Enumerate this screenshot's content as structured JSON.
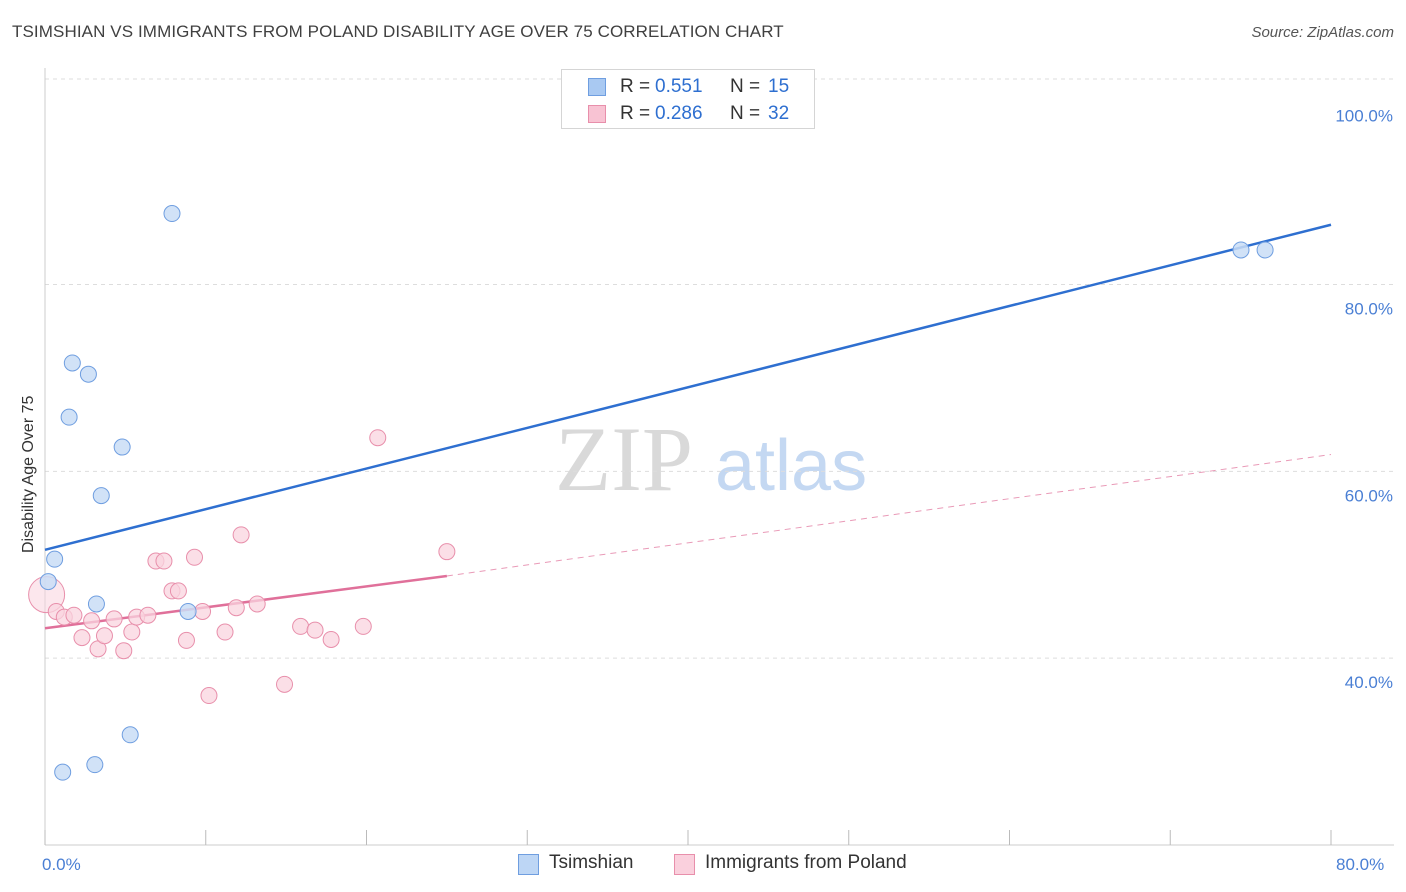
{
  "title": "TSIMSHIAN VS IMMIGRANTS FROM POLAND DISABILITY AGE OVER 75 CORRELATION CHART",
  "source": "Source: ZipAtlas.com",
  "watermark": {
    "zip": "ZIP",
    "atlas": "atlas"
  },
  "legend": {
    "r_label": "R =",
    "n_label": "N =",
    "rows": [
      {
        "r": "0.551",
        "n": "15",
        "color": "#a9c9f2",
        "border": "#6f9ee0"
      },
      {
        "r": "0.286",
        "n": "32",
        "color": "#f8c3d3",
        "border": "#e88fab"
      }
    ]
  },
  "bottom_legend": [
    {
      "label": "Tsimshian",
      "color": "#bdd6f5",
      "border": "#6f9ee0"
    },
    {
      "label": "Immigrants from Poland",
      "color": "#fad0dd",
      "border": "#e88fab"
    }
  ],
  "colors": {
    "blue_line": "#2e6fd0",
    "pink_line": "#e0709a",
    "blue_point_fill": "#c9ddf6",
    "blue_point_stroke": "#6f9ee0",
    "pink_point_fill": "#fad4df",
    "pink_point_stroke": "#e88fab",
    "grid": "#dddddd",
    "axis_label": "#4a7fd4"
  },
  "chart_data": {
    "type": "scatter",
    "title": "TSIMSHIAN VS IMMIGRANTS FROM POLAND DISABILITY AGE OVER 75 CORRELATION CHART",
    "xlabel": "",
    "ylabel": "Disability Age Over 75",
    "xlim": [
      0,
      80
    ],
    "ylim": [
      20,
      102
    ],
    "x_tick_labels": [
      "0.0%",
      "80.0%"
    ],
    "y_ticks": [
      {
        "value": 100,
        "label": "100.0%"
      },
      {
        "value": 80,
        "label": "80.0%"
      },
      {
        "value": 60,
        "label": "60.0%"
      },
      {
        "value": 40,
        "label": "40.0%"
      }
    ],
    "series": [
      {
        "name": "Tsimshian",
        "r": 0.551,
        "n": 15,
        "points": [
          {
            "x": 0.2,
            "y": 48.2
          },
          {
            "x": 0.6,
            "y": 50.6
          },
          {
            "x": 1.1,
            "y": 27.8
          },
          {
            "x": 1.5,
            "y": 65.8
          },
          {
            "x": 1.7,
            "y": 71.6
          },
          {
            "x": 2.7,
            "y": 70.4
          },
          {
            "x": 3.1,
            "y": 28.6
          },
          {
            "x": 3.2,
            "y": 45.8
          },
          {
            "x": 3.5,
            "y": 57.4
          },
          {
            "x": 4.8,
            "y": 62.6
          },
          {
            "x": 5.3,
            "y": 31.8
          },
          {
            "x": 7.9,
            "y": 87.6
          },
          {
            "x": 8.9,
            "y": 45.0
          },
          {
            "x": 74.4,
            "y": 83.7
          },
          {
            "x": 75.9,
            "y": 83.7
          }
        ],
        "trend": {
          "x1": 0,
          "y1": 51.6,
          "x2": 80,
          "y2": 86.4
        }
      },
      {
        "name": "Immigrants from Poland",
        "r": 0.286,
        "n": 32,
        "points": [
          {
            "x": 0.1,
            "y": 46.8
          },
          {
            "x": 0.7,
            "y": 45.0
          },
          {
            "x": 1.2,
            "y": 44.4
          },
          {
            "x": 1.8,
            "y": 44.6
          },
          {
            "x": 2.3,
            "y": 42.2
          },
          {
            "x": 2.9,
            "y": 44.0
          },
          {
            "x": 3.3,
            "y": 41.0
          },
          {
            "x": 3.7,
            "y": 42.4
          },
          {
            "x": 4.3,
            "y": 44.2
          },
          {
            "x": 4.9,
            "y": 40.8
          },
          {
            "x": 5.4,
            "y": 42.8
          },
          {
            "x": 5.7,
            "y": 44.4
          },
          {
            "x": 6.4,
            "y": 44.6
          },
          {
            "x": 6.9,
            "y": 50.4
          },
          {
            "x": 7.4,
            "y": 50.4
          },
          {
            "x": 7.9,
            "y": 47.2
          },
          {
            "x": 8.3,
            "y": 47.2
          },
          {
            "x": 8.8,
            "y": 41.9
          },
          {
            "x": 9.3,
            "y": 50.8
          },
          {
            "x": 9.8,
            "y": 45.0
          },
          {
            "x": 10.2,
            "y": 36.0
          },
          {
            "x": 11.2,
            "y": 42.8
          },
          {
            "x": 11.9,
            "y": 45.4
          },
          {
            "x": 12.2,
            "y": 53.2
          },
          {
            "x": 13.2,
            "y": 45.8
          },
          {
            "x": 14.9,
            "y": 37.2
          },
          {
            "x": 15.9,
            "y": 43.4
          },
          {
            "x": 16.8,
            "y": 43.0
          },
          {
            "x": 17.8,
            "y": 42.0
          },
          {
            "x": 19.8,
            "y": 43.4
          },
          {
            "x": 20.7,
            "y": 63.6
          },
          {
            "x": 25.0,
            "y": 51.4
          }
        ],
        "trend": {
          "x1": 0,
          "y1": 43.2,
          "x2": 25.0,
          "y2": 48.8
        },
        "trend_extension": {
          "x1": 25.0,
          "y1": 48.8,
          "x2": 80,
          "y2": 61.8
        }
      }
    ]
  }
}
